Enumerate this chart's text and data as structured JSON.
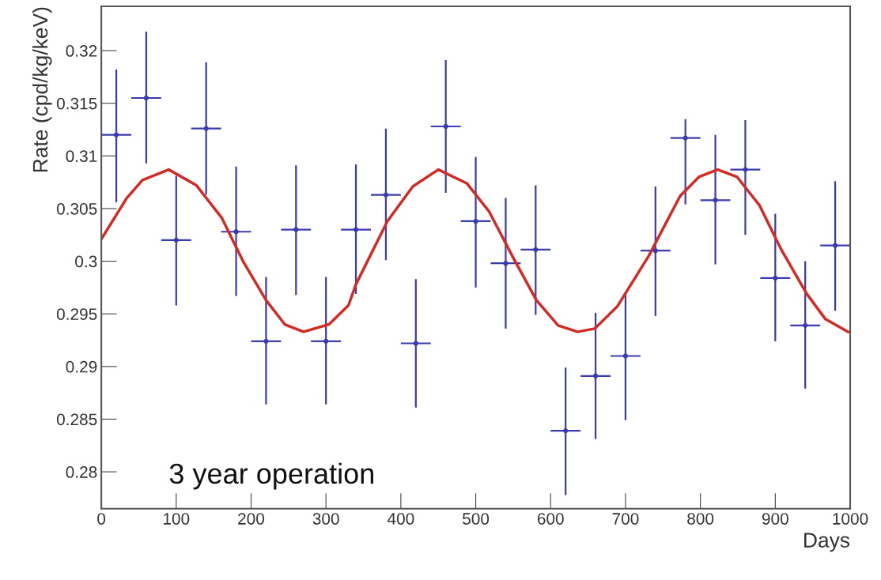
{
  "chart_data": {
    "type": "scatter",
    "xlabel": "Days",
    "ylabel": "Rate (cpd/kg/keV)",
    "annotations": [
      "3 year operation"
    ],
    "xlim": [
      0,
      1000
    ],
    "xticks": [
      0,
      100,
      200,
      300,
      400,
      500,
      600,
      700,
      800,
      900,
      1000
    ],
    "ylim": [
      0.2765,
      0.3242
    ],
    "yticks": [
      0.28,
      0.285,
      0.29,
      0.295,
      0.3,
      0.305,
      0.31,
      0.315,
      0.32
    ],
    "grid": false,
    "legend": false,
    "series": [
      {
        "marker": "circle",
        "color": "#3b3bb0",
        "x": [
          20,
          60,
          100,
          140,
          180,
          220,
          260,
          300,
          340,
          380,
          420,
          460,
          500,
          540,
          580,
          620,
          660,
          700,
          740,
          780,
          820,
          860,
          900,
          940,
          980
        ],
        "values": [
          0.312,
          0.3155,
          0.302,
          0.3126,
          0.3028,
          0.2924,
          0.303,
          0.2924,
          0.303,
          0.3063,
          0.2922,
          0.3128,
          0.3038,
          0.2998,
          0.3011,
          0.2839,
          0.2891,
          0.291,
          0.301,
          0.3117,
          0.3058,
          0.3087,
          0.2984,
          0.2939,
          0.3015
        ],
        "errors": [
          [
            0.3056,
            0.3182
          ],
          [
            0.3093,
            0.3218
          ],
          [
            0.2958,
            0.3081
          ],
          [
            0.3063,
            0.3189
          ],
          [
            0.2967,
            0.309
          ],
          [
            0.2864,
            0.2985
          ],
          [
            0.2968,
            0.3091
          ],
          [
            0.2864,
            0.2985
          ],
          [
            0.2969,
            0.3092
          ],
          [
            0.3001,
            0.3126
          ],
          [
            0.2861,
            0.2983
          ],
          [
            0.3065,
            0.3191
          ],
          [
            0.2975,
            0.3099
          ],
          [
            0.2936,
            0.306
          ],
          [
            0.2949,
            0.3072
          ],
          [
            0.2778,
            0.2899
          ],
          [
            0.2831,
            0.2951
          ],
          [
            0.2849,
            0.297
          ],
          [
            0.2948,
            0.3071
          ],
          [
            0.3054,
            0.3135
          ],
          [
            0.2997,
            0.312
          ],
          [
            0.3025,
            0.3134
          ],
          [
            0.2924,
            0.3045
          ],
          [
            0.2879,
            0.3
          ],
          [
            0.2953,
            0.3076
          ]
        ],
        "xerrors": [
          [
            0,
            40
          ],
          [
            40,
            80
          ],
          [
            80,
            120
          ],
          [
            120,
            160
          ],
          [
            160,
            200
          ],
          [
            200,
            240
          ],
          [
            240,
            280
          ],
          [
            280,
            320
          ],
          [
            320,
            360
          ],
          [
            360,
            400
          ],
          [
            400,
            440
          ],
          [
            440,
            480
          ],
          [
            480,
            520
          ],
          [
            520,
            560
          ],
          [
            560,
            600
          ],
          [
            600,
            640
          ],
          [
            640,
            680
          ],
          [
            680,
            720
          ],
          [
            720,
            760
          ],
          [
            760,
            800
          ],
          [
            800,
            840
          ],
          [
            840,
            880
          ],
          [
            880,
            920
          ],
          [
            920,
            960
          ],
          [
            960,
            1000
          ]
        ]
      },
      {
        "type": "line",
        "marker": "none",
        "line_style": "solid",
        "color": "#d42a24",
        "x": [
          0,
          34,
          55,
          90,
          127,
          161,
          190,
          220,
          245,
          270,
          304,
          330,
          340,
          382,
          416,
          450,
          488,
          518,
          551,
          581,
          610,
          636,
          659,
          689,
          731,
          773,
          798,
          823,
          849,
          879,
          908,
          942,
          967,
          997
        ],
        "values": [
          0.3021,
          0.306,
          0.3077,
          0.3087,
          0.3072,
          0.3041,
          0.2999,
          0.2963,
          0.294,
          0.2933,
          0.294,
          0.2958,
          0.2978,
          0.3038,
          0.3071,
          0.3087,
          0.3074,
          0.3047,
          0.3002,
          0.2963,
          0.2939,
          0.2933,
          0.2936,
          0.2957,
          0.3005,
          0.3062,
          0.308,
          0.3087,
          0.308,
          0.3053,
          0.3011,
          0.2969,
          0.2945,
          0.2933
        ]
      }
    ]
  }
}
